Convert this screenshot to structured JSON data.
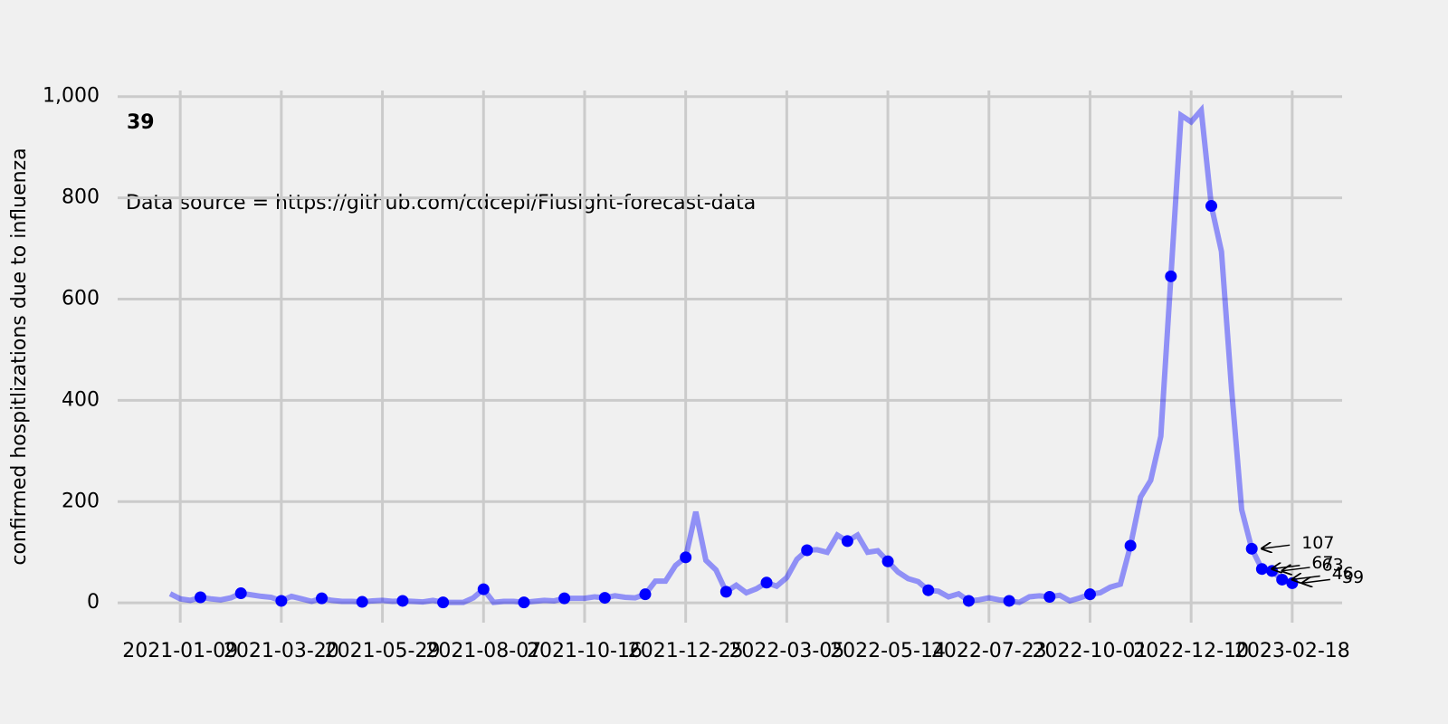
{
  "chart_data": {
    "type": "line",
    "ylabel": "confirmed hospitlizations due to influenza",
    "headline": "39",
    "note": "Data source = https://github.com/cdcepi/Flusight-forecast-data",
    "x": [
      "2021-01-02",
      "2021-01-09",
      "2021-01-16",
      "2021-01-23",
      "2021-01-30",
      "2021-02-06",
      "2021-02-13",
      "2021-02-20",
      "2021-02-27",
      "2021-03-06",
      "2021-03-13",
      "2021-03-20",
      "2021-03-27",
      "2021-04-03",
      "2021-04-10",
      "2021-04-17",
      "2021-04-24",
      "2021-05-01",
      "2021-05-08",
      "2021-05-15",
      "2021-05-22",
      "2021-05-29",
      "2021-06-05",
      "2021-06-12",
      "2021-06-19",
      "2021-06-26",
      "2021-07-03",
      "2021-07-10",
      "2021-07-17",
      "2021-07-24",
      "2021-07-31",
      "2021-08-07",
      "2021-08-14",
      "2021-08-21",
      "2021-08-28",
      "2021-09-04",
      "2021-09-11",
      "2021-09-18",
      "2021-09-25",
      "2021-10-02",
      "2021-10-09",
      "2021-10-16",
      "2021-10-23",
      "2021-10-30",
      "2021-11-06",
      "2021-11-13",
      "2021-11-20",
      "2021-11-27",
      "2021-12-04",
      "2021-12-11",
      "2021-12-18",
      "2021-12-25",
      "2022-01-01",
      "2022-01-08",
      "2022-01-15",
      "2022-01-22",
      "2022-01-29",
      "2022-02-05",
      "2022-02-12",
      "2022-02-19",
      "2022-02-26",
      "2022-03-05",
      "2022-03-12",
      "2022-03-19",
      "2022-03-26",
      "2022-04-02",
      "2022-04-09",
      "2022-04-16",
      "2022-04-23",
      "2022-04-30",
      "2022-05-07",
      "2022-05-14",
      "2022-05-21",
      "2022-05-28",
      "2022-06-04",
      "2022-06-11",
      "2022-06-18",
      "2022-06-25",
      "2022-07-02",
      "2022-07-09",
      "2022-07-16",
      "2022-07-23",
      "2022-07-30",
      "2022-08-06",
      "2022-08-13",
      "2022-08-20",
      "2022-08-27",
      "2022-09-03",
      "2022-09-10",
      "2022-09-17",
      "2022-09-24",
      "2022-10-01",
      "2022-10-08",
      "2022-10-15",
      "2022-10-22",
      "2022-10-29",
      "2022-11-05",
      "2022-11-12",
      "2022-11-19",
      "2022-11-26",
      "2022-12-03",
      "2022-12-10",
      "2022-12-17",
      "2022-12-24",
      "2022-12-31",
      "2023-01-07",
      "2023-01-14",
      "2023-01-21",
      "2023-01-28",
      "2023-02-04",
      "2023-02-11",
      "2023-02-18"
    ],
    "series": [
      {
        "color": "#0000ff",
        "values": [
          18,
          8,
          5,
          11,
          8,
          6,
          10,
          19,
          16,
          13,
          11,
          4,
          13,
          8,
          3,
          9,
          5,
          3,
          3,
          2,
          4,
          5,
          3,
          4,
          3,
          2,
          5,
          1,
          1,
          1,
          10,
          27,
          1,
          3,
          3,
          1,
          3,
          5,
          4,
          9,
          9,
          9,
          12,
          10,
          14,
          11,
          10,
          17,
          43,
          43,
          74,
          90,
          180,
          84,
          65,
          22,
          35,
          20,
          28,
          40,
          33,
          50,
          86,
          104,
          105,
          100,
          134,
          122,
          134,
          100,
          103,
          82,
          61,
          48,
          42,
          25,
          23,
          12,
          18,
          4,
          6,
          10,
          6,
          4,
          1,
          12,
          14,
          12,
          15,
          4,
          10,
          17,
          20,
          31,
          37,
          113,
          209,
          242,
          329,
          645,
          963,
          950,
          973,
          784,
          694,
          422,
          184,
          107,
          67,
          63,
          46,
          39
        ]
      }
    ],
    "annotations": [
      {
        "x": "2023-01-21",
        "text": "107"
      },
      {
        "x": "2023-01-28",
        "text": "67"
      },
      {
        "x": "2023-02-04",
        "text": "63"
      },
      {
        "x": "2023-02-11",
        "text": "46"
      },
      {
        "x": "2023-02-18",
        "text": "39"
      }
    ],
    "ylim": [
      -39,
      1012
    ],
    "yticks": [
      0,
      200,
      400,
      600,
      800,
      {
        "value": 1000,
        "label": "1,000"
      }
    ],
    "xticks": [
      "2021-01-09",
      "2021-03-20",
      "2021-05-29",
      "2021-08-07",
      "2021-10-16",
      "2021-12-25",
      "2022-03-05",
      "2022-05-14",
      "2022-07-23",
      "2022-10-01",
      "2022-12-10",
      "2023-02-18"
    ],
    "grid": true
  }
}
